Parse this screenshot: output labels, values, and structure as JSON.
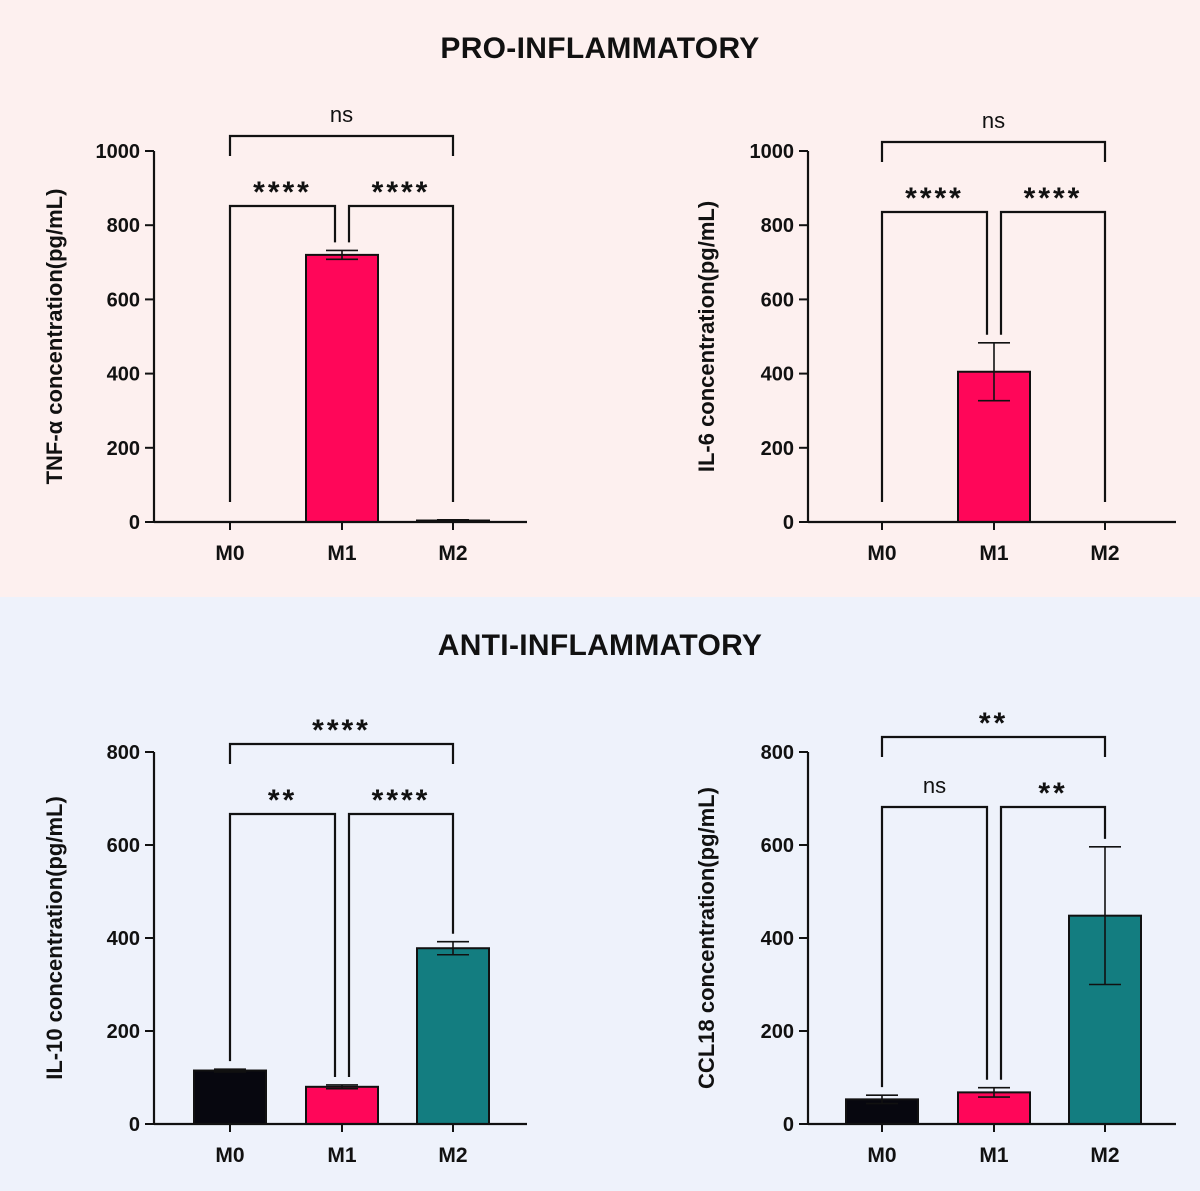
{
  "colors": {
    "pro_bg": "#fdf0ef",
    "anti_bg": "#eef2fb",
    "M0": "#07070f",
    "M1": "#ff0659",
    "M2": "#137d80",
    "axis": "#111111"
  },
  "sections": [
    {
      "id": "pro",
      "title": "PRO-INFLAMMATORY"
    },
    {
      "id": "anti",
      "title": "ANTI-INFLAMMATORY"
    }
  ],
  "chart_data": [
    {
      "type": "bar",
      "section": "pro",
      "categories": [
        "M0",
        "M1",
        "M2"
      ],
      "values": [
        0,
        720,
        4
      ],
      "error": [
        0,
        12,
        2
      ],
      "title": "",
      "xlabel": "",
      "ylabel": "TNF-α concentration(pg/mL)",
      "ylim": [
        0,
        1000
      ],
      "yticks": [
        0,
        200,
        400,
        600,
        800,
        1000
      ],
      "grid": false,
      "comparisons": [
        {
          "from": 0,
          "to": 1,
          "label": "****",
          "level": 1
        },
        {
          "from": 1,
          "to": 2,
          "label": "****",
          "level": 1
        },
        {
          "from": 0,
          "to": 2,
          "label": "ns",
          "level": 2
        }
      ]
    },
    {
      "type": "bar",
      "section": "pro",
      "categories": [
        "M0",
        "M1",
        "M2"
      ],
      "values": [
        0,
        405,
        0
      ],
      "error": [
        0,
        78,
        0
      ],
      "title": "",
      "xlabel": "",
      "ylabel": "IL-6 concentration(pg/mL)",
      "ylim": [
        0,
        1000
      ],
      "yticks": [
        0,
        200,
        400,
        600,
        800,
        1000
      ],
      "grid": false,
      "comparisons": [
        {
          "from": 0,
          "to": 1,
          "label": "****",
          "level": 1
        },
        {
          "from": 1,
          "to": 2,
          "label": "****",
          "level": 1
        },
        {
          "from": 0,
          "to": 2,
          "label": "ns",
          "level": 2
        }
      ]
    },
    {
      "type": "bar",
      "section": "anti",
      "categories": [
        "M0",
        "M1",
        "M2"
      ],
      "values": [
        115,
        80,
        378
      ],
      "error": [
        3,
        4,
        14
      ],
      "title": "",
      "xlabel": "",
      "ylabel": "IL-10 concentration(pg/mL)",
      "ylim": [
        0,
        800
      ],
      "yticks": [
        0,
        200,
        400,
        600,
        800
      ],
      "grid": false,
      "comparisons": [
        {
          "from": 0,
          "to": 1,
          "label": "**",
          "level": 1
        },
        {
          "from": 1,
          "to": 2,
          "label": "****",
          "level": 1
        },
        {
          "from": 0,
          "to": 2,
          "label": "****",
          "level": 2
        }
      ]
    },
    {
      "type": "bar",
      "section": "anti",
      "categories": [
        "M0",
        "M1",
        "M2"
      ],
      "values": [
        53,
        68,
        448
      ],
      "error": [
        9,
        10,
        148
      ],
      "title": "",
      "xlabel": "",
      "ylabel": "CCL18 concentration(pg/mL)",
      "ylim": [
        0,
        800
      ],
      "yticks": [
        0,
        200,
        400,
        600,
        800
      ],
      "grid": false,
      "comparisons": [
        {
          "from": 0,
          "to": 1,
          "label": "ns",
          "level": 1
        },
        {
          "from": 1,
          "to": 2,
          "label": "**",
          "level": 1
        },
        {
          "from": 0,
          "to": 2,
          "label": "**",
          "level": 2
        }
      ]
    }
  ]
}
